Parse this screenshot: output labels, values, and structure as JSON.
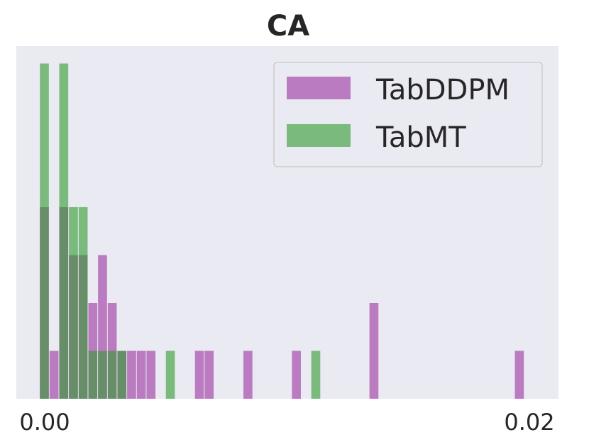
{
  "chart_data": {
    "type": "bar",
    "title": "CA",
    "xlabel": "",
    "ylabel": "",
    "xlim": [
      0.0,
      0.02
    ],
    "ylim": [
      0,
      7
    ],
    "xticks": [
      0.0,
      0.02
    ],
    "xtick_labels": [
      "0.00",
      "0.02"
    ],
    "grid": false,
    "legend_position": "top-right",
    "bin_width": 0.0004,
    "series": [
      {
        "name": "TabDDPM",
        "color": "#9b30a0",
        "bins": [
          {
            "x": 0.0,
            "count": 4
          },
          {
            "x": 0.0004,
            "count": 1
          },
          {
            "x": 0.0008,
            "count": 4
          },
          {
            "x": 0.0012,
            "count": 3
          },
          {
            "x": 0.0016,
            "count": 3
          },
          {
            "x": 0.002,
            "count": 2
          },
          {
            "x": 0.0024,
            "count": 3
          },
          {
            "x": 0.0028,
            "count": 2
          },
          {
            "x": 0.0032,
            "count": 1
          },
          {
            "x": 0.0036,
            "count": 1
          },
          {
            "x": 0.004,
            "count": 1
          },
          {
            "x": 0.0044,
            "count": 1
          },
          {
            "x": 0.0064,
            "count": 1
          },
          {
            "x": 0.0068,
            "count": 1
          },
          {
            "x": 0.0084,
            "count": 1
          },
          {
            "x": 0.0104,
            "count": 1
          },
          {
            "x": 0.0136,
            "count": 2
          },
          {
            "x": 0.0196,
            "count": 1
          }
        ]
      },
      {
        "name": "TabMT",
        "color": "#2e9b2e",
        "bins": [
          {
            "x": 0.0,
            "count": 7
          },
          {
            "x": 0.0004,
            "count": 0
          },
          {
            "x": 0.0008,
            "count": 7
          },
          {
            "x": 0.0012,
            "count": 4
          },
          {
            "x": 0.0016,
            "count": 4
          },
          {
            "x": 0.002,
            "count": 1
          },
          {
            "x": 0.0024,
            "count": 1
          },
          {
            "x": 0.0028,
            "count": 1
          },
          {
            "x": 0.0032,
            "count": 1
          },
          {
            "x": 0.0052,
            "count": 1
          },
          {
            "x": 0.0112,
            "count": 1
          }
        ]
      }
    ]
  }
}
